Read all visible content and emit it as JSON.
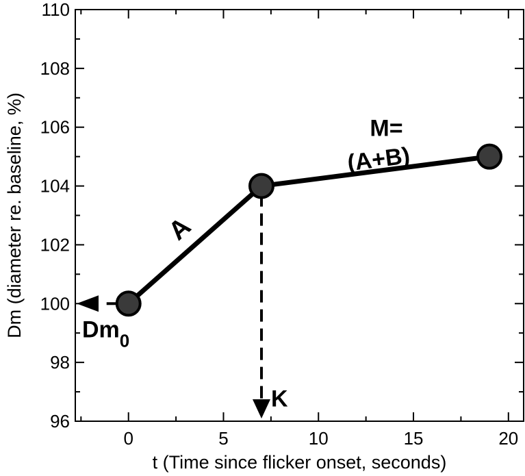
{
  "chart_data": {
    "type": "line",
    "xlabel": "t (Time since flicker onset, seconds)",
    "ylabel": "Dm  (diameter re. baseline, %)",
    "xlim": [
      -2.8,
      20.8
    ],
    "ylim": [
      96,
      110
    ],
    "x_ticks": [
      "0",
      "5",
      "10",
      "15",
      "20"
    ],
    "x_tick_values": [
      0,
      5,
      10,
      15,
      20
    ],
    "y_ticks": [
      "96",
      "98",
      "100",
      "102",
      "104",
      "106",
      "108",
      "110"
    ],
    "y_tick_values": [
      96,
      98,
      100,
      102,
      104,
      106,
      108,
      110
    ],
    "series": [
      {
        "x": [
          0,
          7,
          19
        ],
        "values": [
          100,
          104,
          105
        ]
      }
    ],
    "annotations": {
      "segment_a": "A",
      "segment_m_line1": "M=",
      "segment_m_line2": "(A+B)",
      "baseline_label": "Dm",
      "baseline_subscript": "0",
      "knee_label": "K"
    },
    "colors": {
      "line": "#000000",
      "marker_fill": "#3a3a3a",
      "marker_stroke": "#000000"
    },
    "grid": false
  }
}
